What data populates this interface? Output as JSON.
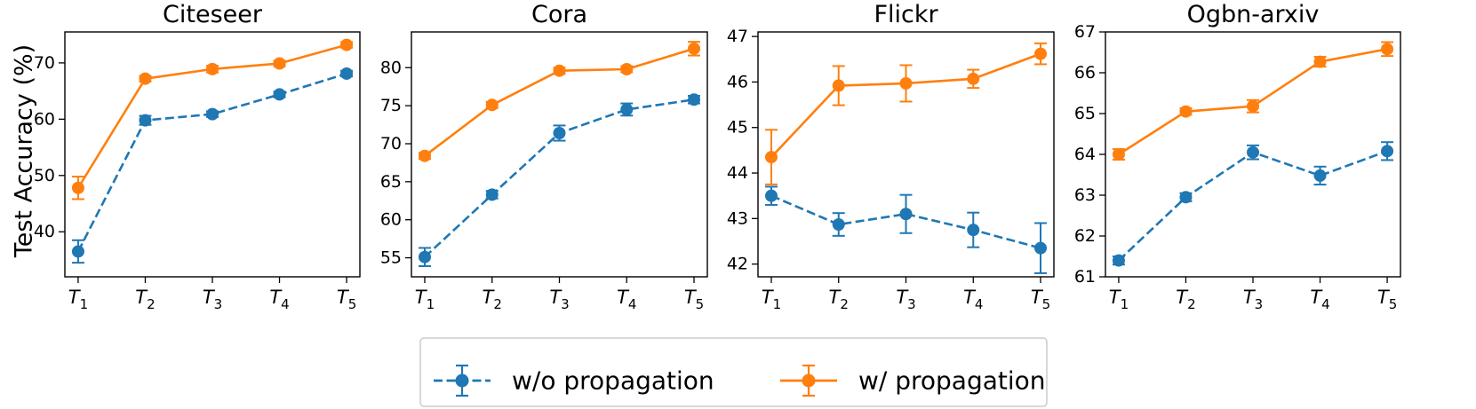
{
  "figure": {
    "ylabel": "Test Accuracy (%)",
    "colors": {
      "without": "#1f77b4",
      "with": "#ff7f0e"
    }
  },
  "legend": {
    "items": [
      {
        "label": "w/o propagation",
        "style": "dashed",
        "color": "#1f77b4"
      },
      {
        "label": "w/ propagation",
        "style": "solid",
        "color": "#ff7f0e"
      }
    ]
  },
  "chart_data": [
    {
      "type": "line",
      "title": "Citeseer",
      "categories": [
        "T1",
        "T2",
        "T3",
        "T4",
        "T5"
      ],
      "ylim": [
        32,
        75.5
      ],
      "yticks": [
        40,
        50,
        60,
        70
      ],
      "series": [
        {
          "name": "w/o propagation",
          "values": [
            36.5,
            59.8,
            60.9,
            64.4,
            68.1
          ],
          "errors": [
            2.0,
            0.8,
            0.5,
            0.5,
            0.5
          ]
        },
        {
          "name": "w/ propagation",
          "values": [
            47.8,
            67.2,
            68.9,
            69.9,
            73.2
          ],
          "errors": [
            2.0,
            0.5,
            0.6,
            0.5,
            0.5
          ]
        }
      ]
    },
    {
      "type": "line",
      "title": "Cora",
      "categories": [
        "T1",
        "T2",
        "T3",
        "T4",
        "T5"
      ],
      "ylim": [
        52.5,
        84.7
      ],
      "yticks": [
        55,
        60,
        65,
        70,
        75,
        80
      ],
      "series": [
        {
          "name": "w/o propagation",
          "values": [
            55.1,
            63.3,
            71.4,
            74.5,
            75.8
          ],
          "errors": [
            1.2,
            0.5,
            1.0,
            0.8,
            0.5
          ]
        },
        {
          "name": "w/ propagation",
          "values": [
            68.4,
            75.1,
            79.6,
            79.8,
            82.5
          ],
          "errors": [
            0.4,
            0.4,
            0.4,
            0.4,
            0.9
          ]
        }
      ]
    },
    {
      "type": "line",
      "title": "Flickr",
      "categories": [
        "T1",
        "T2",
        "T3",
        "T4",
        "T5"
      ],
      "ylim": [
        41.72,
        47.1
      ],
      "yticks": [
        42,
        43,
        44,
        45,
        46,
        47
      ],
      "series": [
        {
          "name": "w/o propagation",
          "values": [
            43.5,
            42.87,
            43.1,
            42.75,
            42.35
          ],
          "errors": [
            0.2,
            0.25,
            0.42,
            0.38,
            0.55
          ]
        },
        {
          "name": "w/ propagation",
          "values": [
            44.35,
            45.92,
            45.97,
            46.07,
            46.62
          ],
          "errors": [
            0.6,
            0.43,
            0.4,
            0.2,
            0.23
          ]
        }
      ]
    },
    {
      "type": "line",
      "title": "Ogbn-arxiv",
      "categories": [
        "T1",
        "T2",
        "T3",
        "T4",
        "T5"
      ],
      "ylim": [
        61.0,
        67.0
      ],
      "yticks": [
        61,
        62,
        63,
        64,
        65,
        66,
        67
      ],
      "series": [
        {
          "name": "w/o propagation",
          "values": [
            61.4,
            62.95,
            64.05,
            63.48,
            64.08
          ],
          "errors": [
            0.1,
            0.1,
            0.17,
            0.22,
            0.22
          ]
        },
        {
          "name": "w/ propagation",
          "values": [
            64.0,
            65.05,
            65.18,
            66.27,
            66.58
          ],
          "errors": [
            0.13,
            0.08,
            0.15,
            0.12,
            0.17
          ]
        }
      ]
    }
  ]
}
